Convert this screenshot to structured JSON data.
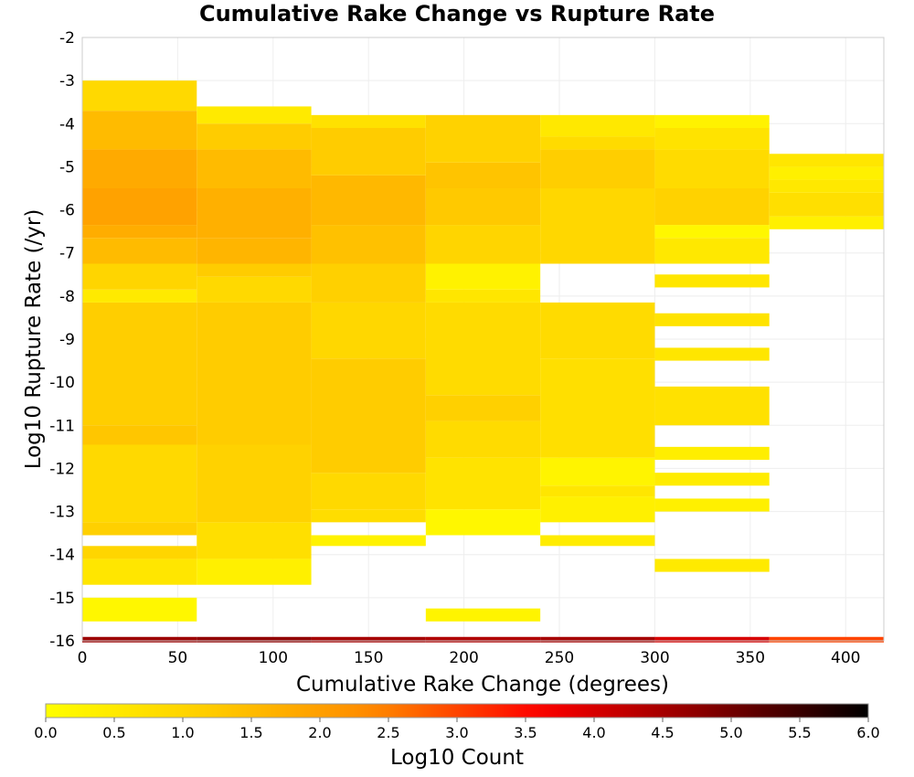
{
  "chart_data": {
    "type": "heatmap",
    "title": "Cumulative Rake Change vs Rupture Rate",
    "xlabel": "Cumulative Rake Change (degrees)",
    "ylabel": "Log10 Rupture Rate (/yr)",
    "colorbar_label": "Log10 Count",
    "xlim": [
      0,
      420
    ],
    "ylim": [
      -16,
      -2
    ],
    "x_ticks": [
      "0",
      "50",
      "100",
      "150",
      "200",
      "250",
      "300",
      "350",
      "400"
    ],
    "y_ticks": [
      "-2",
      "-3",
      "-4",
      "-5",
      "-6",
      "-7",
      "-8",
      "-9",
      "-10",
      "-11",
      "-12",
      "-13",
      "-14",
      "-15",
      "-16"
    ],
    "colorbar_ticks": [
      "0.0",
      "0.5",
      "1.0",
      "1.5",
      "2.0",
      "2.5",
      "3.0",
      "3.5",
      "4.0",
      "4.5",
      "5.0",
      "5.5",
      "6.0"
    ],
    "colorbar_range": [
      0,
      6
    ],
    "colormap": [
      "#ffff00",
      "#ffcc00",
      "#ff8800",
      "#ff0000",
      "#880000",
      "#000000"
    ],
    "bin_width_x": 60,
    "bin_height_y": 0.29,
    "y_bin_origin": -16,
    "columns": [
      {
        "x_start": 0,
        "bins": [
          {
            "y_start": -15.55,
            "y_end": -15.0,
            "value": 0.2
          },
          {
            "y_start": -14.7,
            "y_end": -14.1,
            "value": 0.6
          },
          {
            "y_start": -14.1,
            "y_end": -13.8,
            "value": 1.0
          },
          {
            "y_start": -13.55,
            "y_end": -13.25,
            "value": 1.1
          },
          {
            "y_start": -13.25,
            "y_end": -11.45,
            "value": 0.9
          },
          {
            "y_start": -11.45,
            "y_end": -11.0,
            "value": 1.3
          },
          {
            "y_start": -11.0,
            "y_end": -8.15,
            "value": 1.15
          },
          {
            "y_start": -8.15,
            "y_end": -7.85,
            "value": 0.5
          },
          {
            "y_start": -7.85,
            "y_end": -7.25,
            "value": 1.0
          },
          {
            "y_start": -7.25,
            "y_end": -6.65,
            "value": 1.5
          },
          {
            "y_start": -6.65,
            "y_end": -6.35,
            "value": 1.75
          },
          {
            "y_start": -6.35,
            "y_end": -5.5,
            "value": 1.95
          },
          {
            "y_start": -5.5,
            "y_end": -4.6,
            "value": 1.8
          },
          {
            "y_start": -4.6,
            "y_end": -3.7,
            "value": 1.5
          },
          {
            "y_start": -3.7,
            "y_end": -3.0,
            "value": 0.9
          }
        ]
      },
      {
        "x_start": 60,
        "bins": [
          {
            "y_start": -14.7,
            "y_end": -14.1,
            "value": 0.35
          },
          {
            "y_start": -14.1,
            "y_end": -13.25,
            "value": 0.75
          },
          {
            "y_start": -13.25,
            "y_end": -11.45,
            "value": 1.05
          },
          {
            "y_start": -11.45,
            "y_end": -8.15,
            "value": 1.2
          },
          {
            "y_start": -8.15,
            "y_end": -7.55,
            "value": 0.9
          },
          {
            "y_start": -7.55,
            "y_end": -7.25,
            "value": 1.2
          },
          {
            "y_start": -7.25,
            "y_end": -6.65,
            "value": 1.6
          },
          {
            "y_start": -6.65,
            "y_end": -5.5,
            "value": 1.7
          },
          {
            "y_start": -5.5,
            "y_end": -4.6,
            "value": 1.5
          },
          {
            "y_start": -4.6,
            "y_end": -4.0,
            "value": 1.2
          },
          {
            "y_start": -4.0,
            "y_end": -3.6,
            "value": 0.5
          }
        ]
      },
      {
        "x_start": 120,
        "bins": [
          {
            "y_start": -13.8,
            "y_end": -13.55,
            "value": 0.3
          },
          {
            "y_start": -13.25,
            "y_end": -12.95,
            "value": 0.8
          },
          {
            "y_start": -12.95,
            "y_end": -12.1,
            "value": 0.9
          },
          {
            "y_start": -12.1,
            "y_end": -9.45,
            "value": 1.2
          },
          {
            "y_start": -9.45,
            "y_end": -8.15,
            "value": 0.95
          },
          {
            "y_start": -8.15,
            "y_end": -7.25,
            "value": 1.1
          },
          {
            "y_start": -7.25,
            "y_end": -6.35,
            "value": 1.4
          },
          {
            "y_start": -6.35,
            "y_end": -5.2,
            "value": 1.55
          },
          {
            "y_start": -5.2,
            "y_end": -4.1,
            "value": 1.2
          },
          {
            "y_start": -4.1,
            "y_end": -3.8,
            "value": 0.7
          }
        ]
      },
      {
        "x_start": 180,
        "bins": [
          {
            "y_start": -15.55,
            "y_end": -15.25,
            "value": 0.25
          },
          {
            "y_start": -13.55,
            "y_end": -12.95,
            "value": 0.2
          },
          {
            "y_start": -12.95,
            "y_end": -11.75,
            "value": 0.65
          },
          {
            "y_start": -11.75,
            "y_end": -10.9,
            "value": 0.85
          },
          {
            "y_start": -10.9,
            "y_end": -10.3,
            "value": 1.1
          },
          {
            "y_start": -10.3,
            "y_end": -8.15,
            "value": 0.85
          },
          {
            "y_start": -8.15,
            "y_end": -7.85,
            "value": 0.6
          },
          {
            "y_start": -7.85,
            "y_end": -7.25,
            "value": 0.3
          },
          {
            "y_start": -7.25,
            "y_end": -6.35,
            "value": 1.0
          },
          {
            "y_start": -6.35,
            "y_end": -5.5,
            "value": 1.25
          },
          {
            "y_start": -5.5,
            "y_end": -4.9,
            "value": 1.35
          },
          {
            "y_start": -4.9,
            "y_end": -3.8,
            "value": 1.05
          }
        ]
      },
      {
        "x_start": 240,
        "bins": [
          {
            "y_start": -13.8,
            "y_end": -13.55,
            "value": 0.45
          },
          {
            "y_start": -13.25,
            "y_end": -12.65,
            "value": 0.35
          },
          {
            "y_start": -12.65,
            "y_end": -12.4,
            "value": 0.6
          },
          {
            "y_start": -12.4,
            "y_end": -11.75,
            "value": 0.25
          },
          {
            "y_start": -11.75,
            "y_end": -9.45,
            "value": 0.75
          },
          {
            "y_start": -9.45,
            "y_end": -8.15,
            "value": 0.85
          },
          {
            "y_start": -7.25,
            "y_end": -5.5,
            "value": 0.95
          },
          {
            "y_start": -5.5,
            "y_end": -4.6,
            "value": 1.15
          },
          {
            "y_start": -4.6,
            "y_end": -4.3,
            "value": 0.85
          },
          {
            "y_start": -4.3,
            "y_end": -3.8,
            "value": 0.55
          }
        ]
      },
      {
        "x_start": 300,
        "bins": [
          {
            "y_start": -14.4,
            "y_end": -14.1,
            "value": 0.5
          },
          {
            "y_start": -13.0,
            "y_end": -12.7,
            "value": 0.35
          },
          {
            "y_start": -12.4,
            "y_end": -12.1,
            "value": 0.45
          },
          {
            "y_start": -11.8,
            "y_end": -11.5,
            "value": 0.4
          },
          {
            "y_start": -11.0,
            "y_end": -10.1,
            "value": 0.7
          },
          {
            "y_start": -9.5,
            "y_end": -9.2,
            "value": 0.6
          },
          {
            "y_start": -8.7,
            "y_end": -8.4,
            "value": 0.65
          },
          {
            "y_start": -7.8,
            "y_end": -7.5,
            "value": 0.6
          },
          {
            "y_start": -7.25,
            "y_end": -6.65,
            "value": 0.55
          },
          {
            "y_start": -6.65,
            "y_end": -6.35,
            "value": 0.2
          },
          {
            "y_start": -6.35,
            "y_end": -5.5,
            "value": 1.05
          },
          {
            "y_start": -5.5,
            "y_end": -4.6,
            "value": 0.85
          },
          {
            "y_start": -4.6,
            "y_end": -4.1,
            "value": 0.65
          },
          {
            "y_start": -4.1,
            "y_end": -3.8,
            "value": 0.3
          }
        ]
      },
      {
        "x_start": 360,
        "bins": [
          {
            "y_start": -6.45,
            "y_end": -6.15,
            "value": 0.35
          },
          {
            "y_start": -6.15,
            "y_end": -5.6,
            "value": 0.75
          },
          {
            "y_start": -5.6,
            "y_end": -5.3,
            "value": 0.55
          },
          {
            "y_start": -5.3,
            "y_end": -5.0,
            "value": 0.35
          },
          {
            "y_start": -5.0,
            "y_end": -4.7,
            "value": 0.6
          }
        ]
      }
    ],
    "bottom_strip": [
      {
        "x_start": 0,
        "x_end": 60,
        "value": 4.6
      },
      {
        "x_start": 60,
        "x_end": 120,
        "value": 4.7
      },
      {
        "x_start": 120,
        "x_end": 180,
        "value": 4.5
      },
      {
        "x_start": 180,
        "x_end": 240,
        "value": 4.4
      },
      {
        "x_start": 240,
        "x_end": 300,
        "value": 4.5
      },
      {
        "x_start": 300,
        "x_end": 360,
        "value": 4.0
      },
      {
        "x_start": 360,
        "x_end": 420,
        "value": 3.0
      }
    ]
  }
}
